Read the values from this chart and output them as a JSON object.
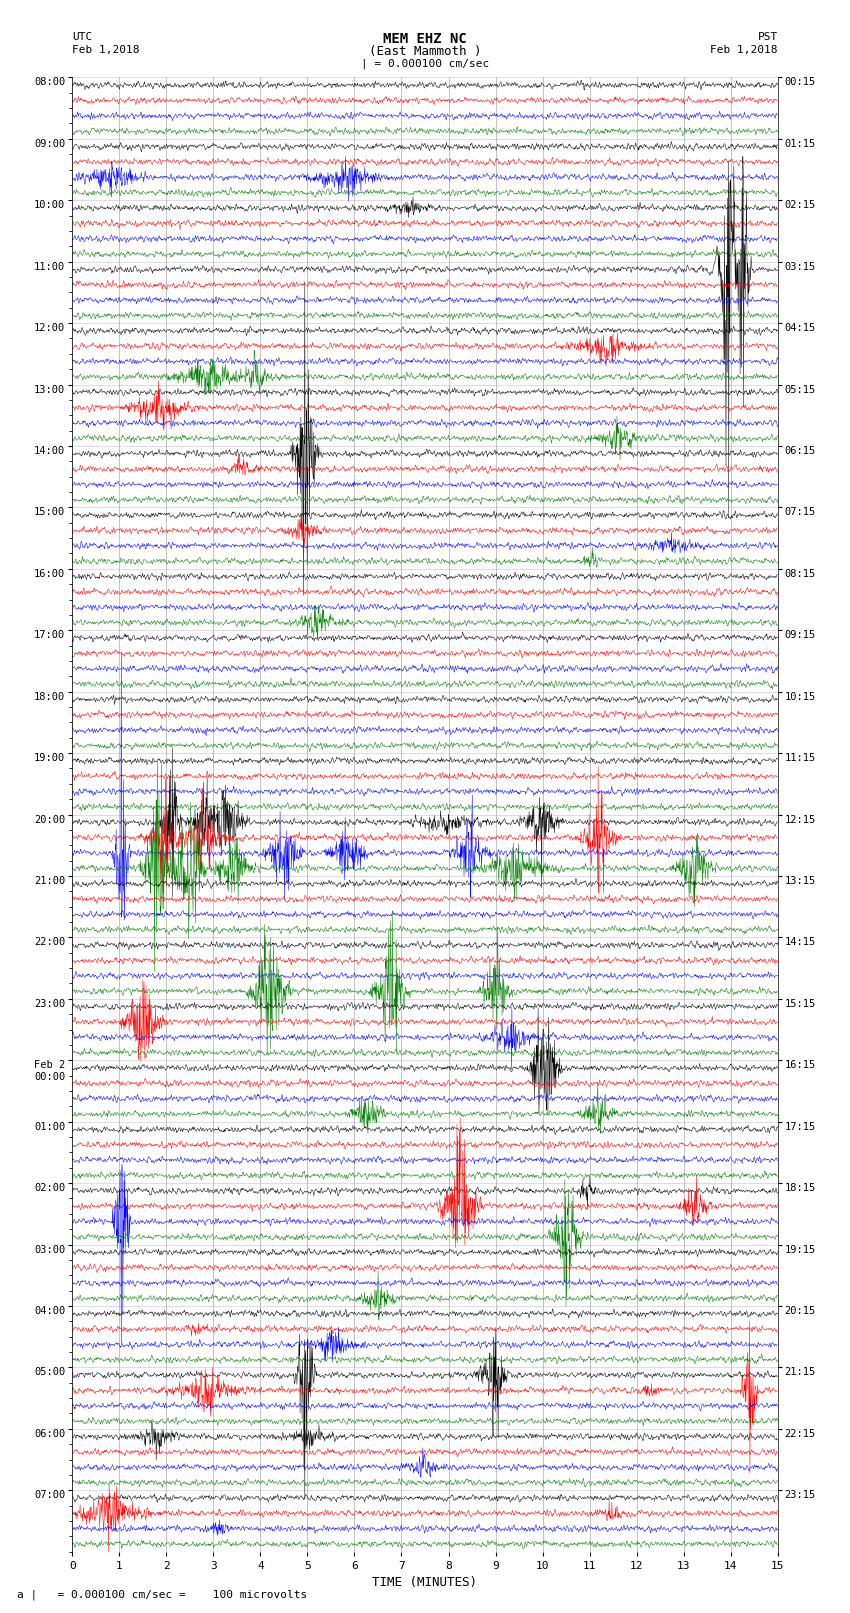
{
  "title_line1": "MEM EHZ NC",
  "title_line2": "(East Mammoth )",
  "scale_label": "| = 0.000100 cm/sec",
  "bottom_label": "a |   = 0.000100 cm/sec =    100 microvolts",
  "xlabel": "TIME (MINUTES)",
  "left_header_line1": "UTC",
  "left_header_line2": "Feb 1,2018",
  "right_header_line1": "PST",
  "right_header_line2": "Feb 1,2018",
  "num_hour_blocks": 24,
  "traces_per_block": 4,
  "colors": [
    "black",
    "red",
    "blue",
    "green"
  ],
  "minutes_per_row": 15,
  "bg_color": "white",
  "grid_color": "#888888",
  "fig_width": 8.5,
  "fig_height": 16.13,
  "dpi": 100,
  "noise_base": 0.018,
  "left_ytick_labels": [
    "08:00",
    "09:00",
    "10:00",
    "11:00",
    "12:00",
    "13:00",
    "14:00",
    "15:00",
    "16:00",
    "17:00",
    "18:00",
    "19:00",
    "20:00",
    "21:00",
    "22:00",
    "23:00",
    "Feb 2\n00:00",
    "01:00",
    "02:00",
    "03:00",
    "04:00",
    "05:00",
    "06:00",
    "07:00"
  ],
  "right_ytick_labels": [
    "00:15",
    "01:15",
    "02:15",
    "03:15",
    "04:15",
    "05:15",
    "06:15",
    "07:15",
    "08:15",
    "09:15",
    "10:15",
    "11:15",
    "12:15",
    "13:15",
    "14:15",
    "15:15",
    "16:15",
    "17:15",
    "18:15",
    "19:15",
    "20:15",
    "21:15",
    "22:15",
    "23:15"
  ],
  "seed": 12345
}
